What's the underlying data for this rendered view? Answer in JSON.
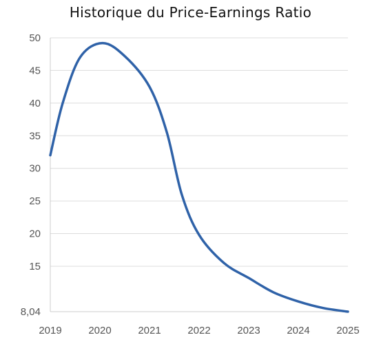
{
  "chart_data": {
    "type": "line",
    "title": "Historique du Price-Earnings Ratio",
    "xlabel": "",
    "ylabel": "",
    "x_ticks": [
      "2019",
      "2020",
      "2021",
      "2022",
      "2023",
      "2024",
      "2025"
    ],
    "y_ticks": [
      {
        "value": 50,
        "label": "50"
      },
      {
        "value": 45,
        "label": "45"
      },
      {
        "value": 40,
        "label": "40"
      },
      {
        "value": 35,
        "label": "35"
      },
      {
        "value": 30,
        "label": "30"
      },
      {
        "value": 25,
        "label": "25"
      },
      {
        "value": 20,
        "label": "20"
      },
      {
        "value": 15,
        "label": "15"
      },
      {
        "value": 8.04,
        "label": "8,04"
      }
    ],
    "ylim": [
      8.04,
      50
    ],
    "xlim": [
      2019,
      2025
    ],
    "grid": true,
    "series": [
      {
        "color": "#2f62a8",
        "points": [
          {
            "x": 2019.0,
            "y": 32
          },
          {
            "x": 2019.25,
            "y": 40
          },
          {
            "x": 2019.6,
            "y": 47
          },
          {
            "x": 2020.05,
            "y": 49.2
          },
          {
            "x": 2020.5,
            "y": 47.2
          },
          {
            "x": 2021.0,
            "y": 42.5
          },
          {
            "x": 2021.35,
            "y": 35.5
          },
          {
            "x": 2021.65,
            "y": 26
          },
          {
            "x": 2022.0,
            "y": 19.8
          },
          {
            "x": 2022.5,
            "y": 15.5
          },
          {
            "x": 2023.0,
            "y": 13.2
          },
          {
            "x": 2023.5,
            "y": 11.0
          },
          {
            "x": 2024.0,
            "y": 9.6
          },
          {
            "x": 2024.5,
            "y": 8.6
          },
          {
            "x": 2025.0,
            "y": 8.04
          }
        ]
      }
    ]
  }
}
